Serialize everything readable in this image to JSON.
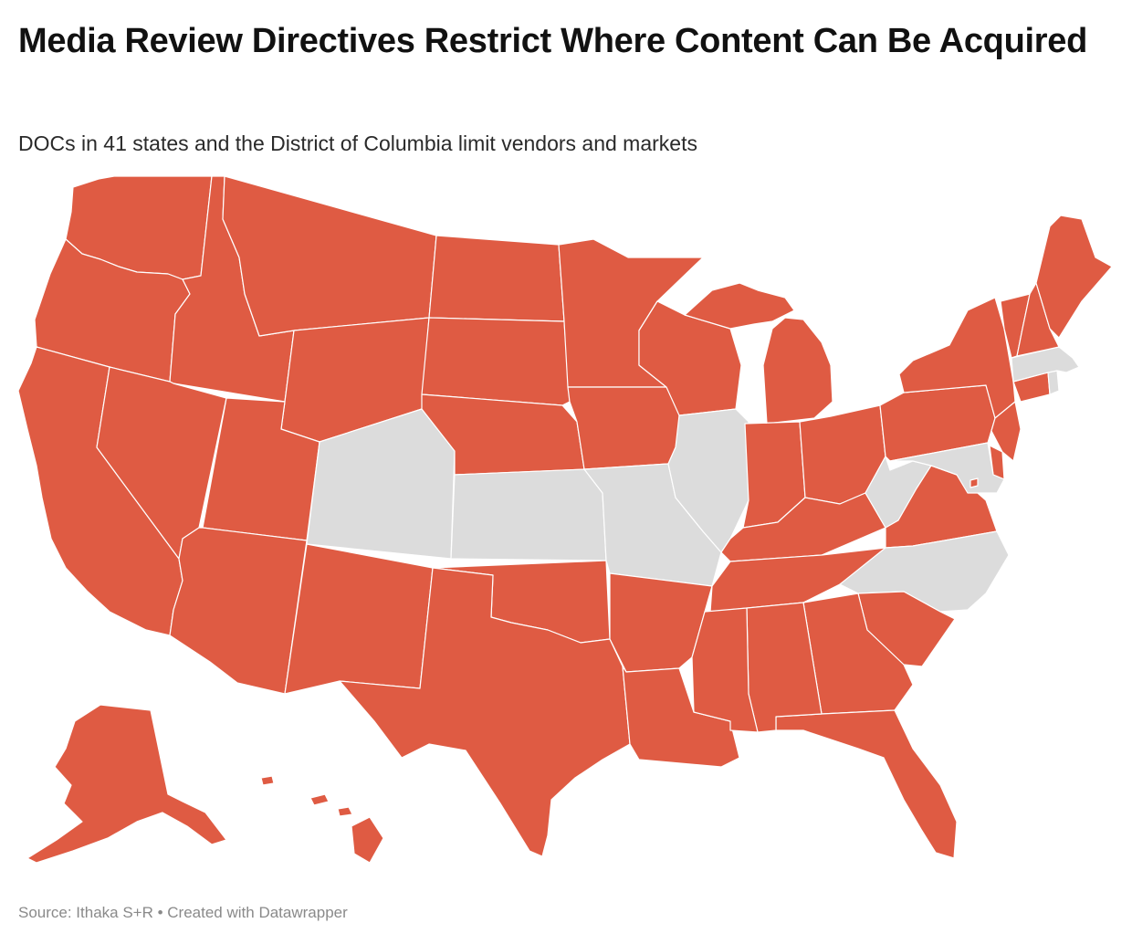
{
  "header": {
    "title": "Media Review Directives Restrict Where Content Can Be Acquired",
    "subtitle": "DOCs in 41 states and the District of Columbia limit vendors and markets"
  },
  "footer": {
    "source": "Source: Ithaka S+R • Created with Datawrapper"
  },
  "map": {
    "colors": {
      "restricts": "#df5b43",
      "no_restriction": "#dcdcdc",
      "lake": "#ffffff"
    },
    "restricts": [
      "WA",
      "OR",
      "CA",
      "ID",
      "NV",
      "MT",
      "WY",
      "UT",
      "AZ",
      "NM",
      "ND",
      "SD",
      "NE",
      "OK",
      "TX",
      "MN",
      "IA",
      "AR",
      "LA",
      "WI",
      "MI",
      "IN",
      "OH",
      "KY",
      "TN",
      "MS",
      "AL",
      "GA",
      "FL",
      "SC",
      "VA",
      "PA",
      "NY",
      "NJ",
      "DE",
      "CT",
      "VT",
      "NH",
      "ME",
      "AK",
      "HI",
      "DC"
    ],
    "no_restriction": [
      "CO",
      "KS",
      "MO",
      "IL",
      "WV",
      "NC",
      "MD",
      "MA",
      "RI"
    ]
  }
}
